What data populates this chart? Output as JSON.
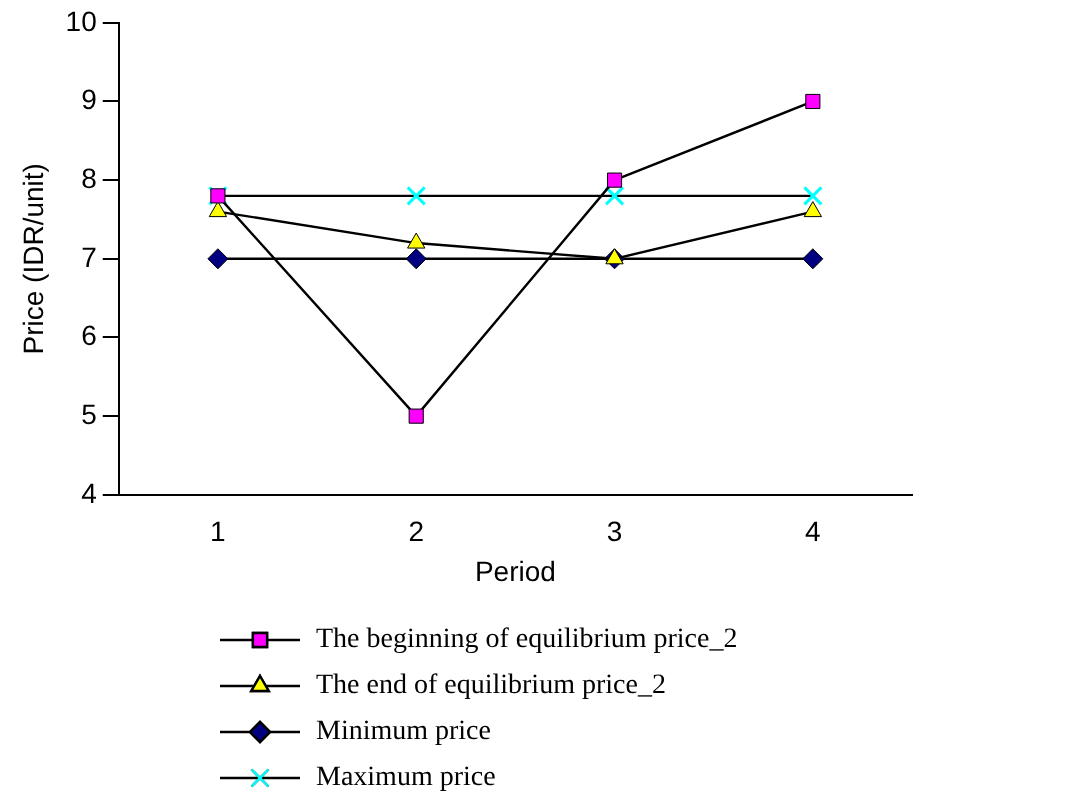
{
  "chart_data": {
    "type": "line",
    "xlabel": "Period",
    "ylabel": "Price (IDR/unit)",
    "categories": [
      "1",
      "2",
      "3",
      "4"
    ],
    "series": [
      {
        "name": "The beginning of equilibrium price_2",
        "color": "#ff00ff",
        "marker": "square",
        "values": [
          7.8,
          5,
          8,
          9
        ]
      },
      {
        "name": "The end of equilibrium price_2",
        "color": "#ffff00",
        "marker": "triangle",
        "values": [
          7.6,
          7.2,
          7.0,
          7.6
        ]
      },
      {
        "name": "Minimum price",
        "color": "#000080",
        "marker": "diamond",
        "values": [
          7,
          7,
          7,
          7
        ]
      },
      {
        "name": "Maximum price",
        "color": "#00ffff",
        "marker": "cross",
        "values": [
          7.8,
          7.8,
          7.8,
          7.8
        ]
      }
    ],
    "ylim": [
      4,
      10
    ],
    "yticks": [
      4,
      5,
      6,
      7,
      8,
      9,
      10
    ],
    "grid": false,
    "legend": "bottom",
    "line_style": "solid"
  }
}
